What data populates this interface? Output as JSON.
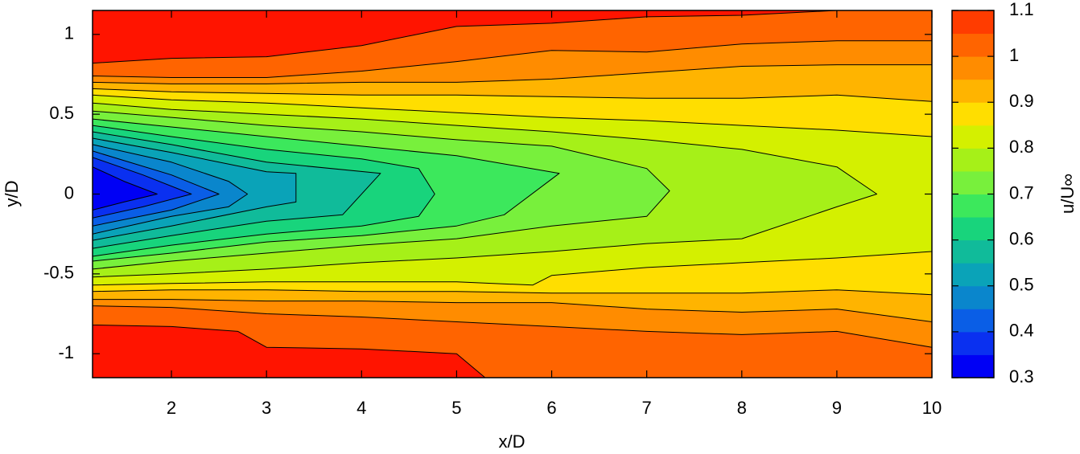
{
  "chart_data": {
    "type": "contour",
    "xlabel": "x/D",
    "ylabel": "y/D",
    "xlim": [
      1.17,
      10
    ],
    "ylim": [
      -1.15,
      1.15
    ],
    "xticks": [
      2,
      3,
      4,
      5,
      6,
      7,
      8,
      9,
      10
    ],
    "yticks": [
      -1,
      -0.5,
      0,
      0.5,
      1
    ],
    "line_color": "#000000",
    "colorbar": {
      "label": "u/U∞",
      "levels": [
        0.3,
        0.35,
        0.4,
        0.45,
        0.5,
        0.55,
        0.6,
        0.65,
        0.7,
        0.75,
        0.8,
        0.85,
        0.9,
        0.95,
        1.0,
        1.05,
        1.1
      ],
      "colors": [
        "#0000f5",
        "#0a30f0",
        "#0a5ee6",
        "#0a86cc",
        "#0aa3b8",
        "#10bb9a",
        "#18d47c",
        "#3ce85c",
        "#78f03c",
        "#a6f018",
        "#d4f000",
        "#ffde00",
        "#ffb400",
        "#ff8c00",
        "#ff6400",
        "#ff3c00",
        "#ff1400"
      ],
      "ticks": [
        0.3,
        0.4,
        0.5,
        0.6,
        0.7,
        0.8,
        0.9,
        1,
        1.1
      ]
    },
    "contours": [
      {
        "level": 1.05,
        "x": [
          1.17,
          2,
          3,
          4,
          5,
          6,
          7,
          8,
          9,
          10,
          10,
          5.3,
          5,
          4,
          3,
          2.7,
          2,
          1.17
        ],
        "y": [
          0.82,
          0.85,
          0.86,
          0.93,
          1.05,
          1.07,
          1.11,
          1.12,
          1.15,
          1.15,
          -1.15,
          -1.15,
          -1.0,
          -0.97,
          -0.96,
          -0.86,
          -0.83,
          -0.82
        ]
      },
      {
        "level": 1.0,
        "x": [
          1.17,
          2,
          3,
          4,
          5,
          6,
          7,
          8,
          9,
          10,
          10,
          9,
          8,
          7,
          6,
          5,
          4,
          3,
          2,
          1.17
        ],
        "y": [
          0.74,
          0.73,
          0.73,
          0.77,
          0.83,
          0.9,
          0.89,
          0.94,
          0.96,
          0.96,
          -0.96,
          -0.86,
          -0.88,
          -0.86,
          -0.83,
          -0.8,
          -0.77,
          -0.75,
          -0.71,
          -0.7
        ]
      },
      {
        "level": 0.95,
        "x": [
          1.17,
          2,
          3,
          4,
          5,
          6,
          7,
          8,
          9,
          10,
          10,
          9,
          8,
          7,
          6,
          5,
          4,
          3,
          2,
          1.17
        ],
        "y": [
          0.7,
          0.69,
          0.69,
          0.7,
          0.7,
          0.72,
          0.76,
          0.8,
          0.81,
          0.81,
          -0.8,
          -0.72,
          -0.74,
          -0.72,
          -0.68,
          -0.68,
          -0.67,
          -0.67,
          -0.66,
          -0.66
        ]
      },
      {
        "level": 0.9,
        "x": [
          1.17,
          2,
          3,
          4,
          5,
          6,
          7,
          8,
          9,
          10,
          10,
          9,
          8,
          7,
          6,
          5,
          4,
          3,
          2,
          1.17
        ],
        "y": [
          0.66,
          0.64,
          0.63,
          0.62,
          0.62,
          0.61,
          0.6,
          0.6,
          0.62,
          0.58,
          -0.63,
          -0.6,
          -0.62,
          -0.62,
          -0.62,
          -0.61,
          -0.61,
          -0.6,
          -0.6,
          -0.61
        ]
      },
      {
        "level": 0.85,
        "x": [
          1.17,
          2,
          3,
          4,
          5,
          6,
          7,
          8,
          9,
          10,
          10,
          9,
          8,
          7,
          6,
          5.8,
          5,
          4,
          3,
          2,
          1.17
        ],
        "y": [
          0.62,
          0.59,
          0.57,
          0.54,
          0.51,
          0.48,
          0.46,
          0.43,
          0.4,
          0.36,
          -0.36,
          -0.4,
          -0.43,
          -0.46,
          -0.51,
          -0.57,
          -0.55,
          -0.55,
          -0.55,
          -0.56,
          -0.57
        ]
      },
      {
        "level": 0.8,
        "x": [
          1.17,
          2,
          3,
          4,
          5,
          6,
          7,
          8,
          9,
          9.42,
          9,
          8,
          7,
          6,
          5,
          4,
          3,
          2,
          1.17
        ],
        "y": [
          0.57,
          0.53,
          0.5,
          0.47,
          0.43,
          0.39,
          0.34,
          0.28,
          0.17,
          0,
          -0.08,
          -0.28,
          -0.31,
          -0.36,
          -0.4,
          -0.43,
          -0.47,
          -0.5,
          -0.52
        ]
      },
      {
        "level": 0.75,
        "x": [
          1.17,
          2,
          3,
          4,
          5,
          6,
          7,
          7.24,
          7,
          6,
          5,
          4,
          3,
          2,
          1.17
        ],
        "y": [
          0.52,
          0.48,
          0.43,
          0.39,
          0.34,
          0.3,
          0.16,
          0.02,
          -0.14,
          -0.2,
          -0.28,
          -0.32,
          -0.37,
          -0.42,
          -0.47
        ]
      },
      {
        "level": 0.7,
        "x": [
          1.17,
          2,
          3,
          4,
          5,
          6.08,
          5.5,
          5,
          4,
          3,
          2,
          1.17
        ],
        "y": [
          0.47,
          0.42,
          0.36,
          0.3,
          0.24,
          0.13,
          -0.13,
          -0.2,
          -0.26,
          -0.3,
          -0.37,
          -0.42
        ]
      },
      {
        "level": 0.65,
        "x": [
          1.17,
          2,
          3,
          4,
          4.6,
          4.77,
          4.6,
          4,
          3,
          2,
          1.17
        ],
        "y": [
          0.43,
          0.36,
          0.28,
          0.22,
          0.16,
          0,
          -0.14,
          -0.2,
          -0.25,
          -0.32,
          -0.39
        ]
      },
      {
        "level": 0.6,
        "x": [
          1.17,
          2,
          3,
          4.2,
          3.8,
          3,
          2,
          1.17
        ],
        "y": [
          0.39,
          0.31,
          0.2,
          0.13,
          -0.13,
          -0.17,
          -0.26,
          -0.34
        ]
      },
      {
        "level": 0.55,
        "x": [
          1.17,
          2,
          3,
          3.31,
          3.31,
          3,
          2,
          1.17
        ],
        "y": [
          0.35,
          0.26,
          0.14,
          0.13,
          -0.05,
          -0.08,
          -0.2,
          -0.29
        ]
      },
      {
        "level": 0.5,
        "x": [
          1.17,
          2,
          2.6,
          2.8,
          2.6,
          2,
          1.17
        ],
        "y": [
          0.31,
          0.2,
          0.08,
          0,
          -0.08,
          -0.14,
          -0.25
        ]
      },
      {
        "level": 0.45,
        "x": [
          1.17,
          2,
          2.5,
          2,
          1.17
        ],
        "y": [
          0.27,
          0.12,
          0,
          -0.1,
          -0.2
        ]
      },
      {
        "level": 0.4,
        "x": [
          1.17,
          1.7,
          2.21,
          1.7,
          1.17
        ],
        "y": [
          0.23,
          0.12,
          0,
          -0.08,
          -0.15
        ]
      },
      {
        "level": 0.35,
        "x": [
          1.17,
          1.5,
          1.85,
          1.5,
          1.17
        ],
        "y": [
          0.17,
          0.08,
          0,
          -0.05,
          -0.1
        ]
      }
    ]
  }
}
